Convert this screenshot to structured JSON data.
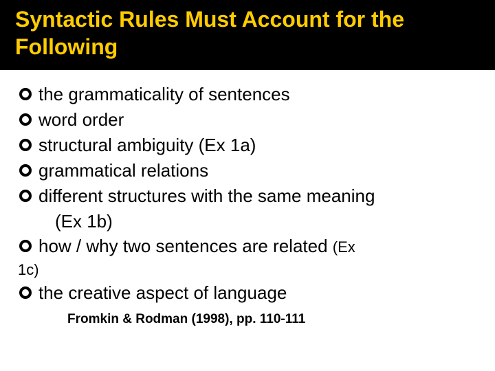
{
  "title": "Syntactic Rules Must Account for the Following",
  "bullets": {
    "b1": "the grammaticality of sentences",
    "b2": "word order",
    "b3": "structural ambiguity (Ex 1a)",
    "b4": "grammatical relations",
    "b5": "different structures with the same meaning",
    "b5_cont": "(Ex 1b)",
    "b6": "how / why two sentences are related",
    "b6_ref": "(Ex",
    "b6_ref2": "1c)",
    "b7": "the creative aspect of language"
  },
  "citation": "Fromkin & Rodman (1998), pp. 110-111",
  "colors": {
    "title_bg": "#000000",
    "title_fg": "#ffcc00",
    "body_bg": "#ffffff",
    "text": "#000000"
  }
}
